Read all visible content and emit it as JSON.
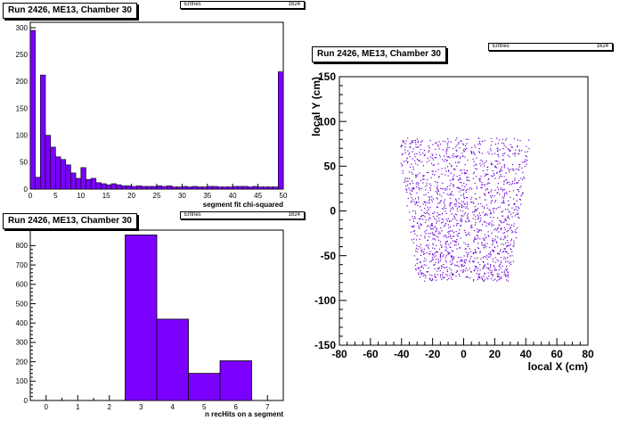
{
  "chart_data": [
    {
      "type": "bar",
      "title": "Run 2426, ME13, Chamber 30",
      "stats": {
        "label": "Entries",
        "value": "1624"
      },
      "xlabel": "segment fit chi-squared",
      "ylabel": "",
      "xlim": [
        0,
        50
      ],
      "ylim": [
        0,
        310
      ],
      "xticks": [
        0,
        5,
        10,
        15,
        20,
        25,
        30,
        35,
        40,
        45,
        50
      ],
      "yticks": [
        0,
        50,
        100,
        150,
        200,
        250,
        300
      ],
      "bin_width": 1,
      "values": [
        295,
        22,
        212,
        100,
        78,
        60,
        55,
        45,
        30,
        20,
        40,
        18,
        20,
        12,
        10,
        8,
        10,
        8,
        6,
        6,
        5,
        6,
        5,
        5,
        5,
        6,
        5,
        6,
        4,
        4,
        5,
        4,
        5,
        4,
        4,
        5,
        5,
        4,
        4,
        4,
        5,
        5,
        5,
        4,
        5,
        4,
        4,
        4,
        4,
        218
      ],
      "bar_color": "#7b00ff"
    },
    {
      "type": "bar",
      "title": "Run 2426, ME13, Chamber 30",
      "stats": {
        "label": "Entries",
        "value": "1624"
      },
      "xlabel": "n recHits on a segment",
      "ylabel": "",
      "xlim": [
        -0.5,
        7.5
      ],
      "ylim": [
        0,
        880
      ],
      "xticks": [
        0,
        1,
        2,
        3,
        4,
        5,
        6,
        7
      ],
      "yticks": [
        0,
        100,
        200,
        300,
        400,
        500,
        600,
        700,
        800
      ],
      "categories": [
        3,
        4,
        5,
        6
      ],
      "values": [
        855,
        420,
        140,
        205
      ],
      "bar_color": "#7b00ff"
    },
    {
      "type": "scatter",
      "title": "Run 2426, ME13, Chamber 30",
      "stats": {
        "label": "Entries",
        "value": "1624"
      },
      "xlabel": "local X (cm)",
      "ylabel": "local Y (cm)",
      "xlim": [
        -80,
        80
      ],
      "ylim": [
        -150,
        150
      ],
      "xticks": [
        -80,
        -60,
        -40,
        -20,
        0,
        20,
        40,
        60,
        80
      ],
      "yticks": [
        -150,
        -100,
        -50,
        0,
        50,
        100,
        150
      ],
      "point_count": 1624,
      "region": {
        "y_min": -78,
        "y_max": 82,
        "half_width_at_top": 43,
        "half_width_at_bottom": 30
      },
      "point_color": "#6a00d8"
    }
  ]
}
